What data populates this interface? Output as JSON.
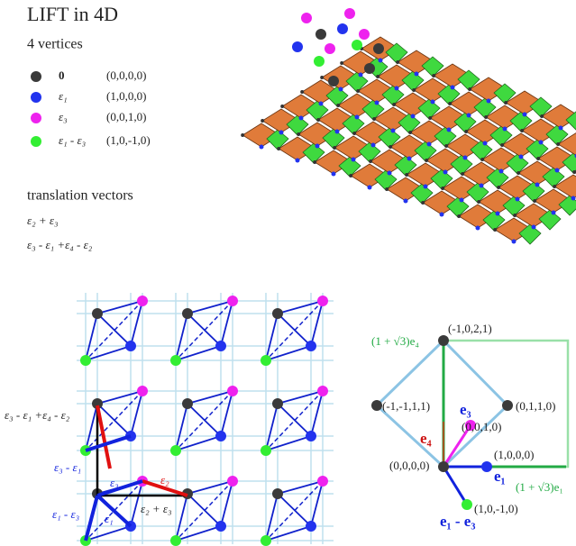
{
  "header": {
    "title": "LIFT in 4D"
  },
  "vertices": {
    "heading": "4 vertices",
    "items": [
      {
        "label": "0",
        "coords": "(0,0,0,0)"
      },
      {
        "label": "ε₁",
        "coords": "(1,0,0,0)"
      },
      {
        "label": "ε₃",
        "coords": "(0,0,1,0)"
      },
      {
        "label": "ε₁ - ε₃",
        "coords": "(1,0,-1,0)"
      }
    ]
  },
  "translations": {
    "heading": "translation vectors",
    "items": [
      "ε₂ + ε₃",
      "ε₃ - ε₁ +ε₄ - ε₂"
    ]
  },
  "lattice_labels": [
    "ε₃ - ε₁ +ε₄ - ε₂",
    "ε₃ - ε₁",
    "ε₁ - ε₃",
    "ε₃",
    "ε₁",
    "ε₂",
    "ε₂ + ε₃"
  ],
  "projection_labels": [
    "(1 + √3)e₄",
    "(-1,0,2,1)",
    "(-1,-1,1,1)",
    "(0,1,1,0)",
    "e₃",
    "(0,0,1,0)",
    "e₄",
    "(1,0,0,0)",
    "(0,0,0,0)",
    "e₁",
    "(1 + √3)e₁",
    "(1,0,-1,0)",
    "e₁ - e₃"
  ]
}
